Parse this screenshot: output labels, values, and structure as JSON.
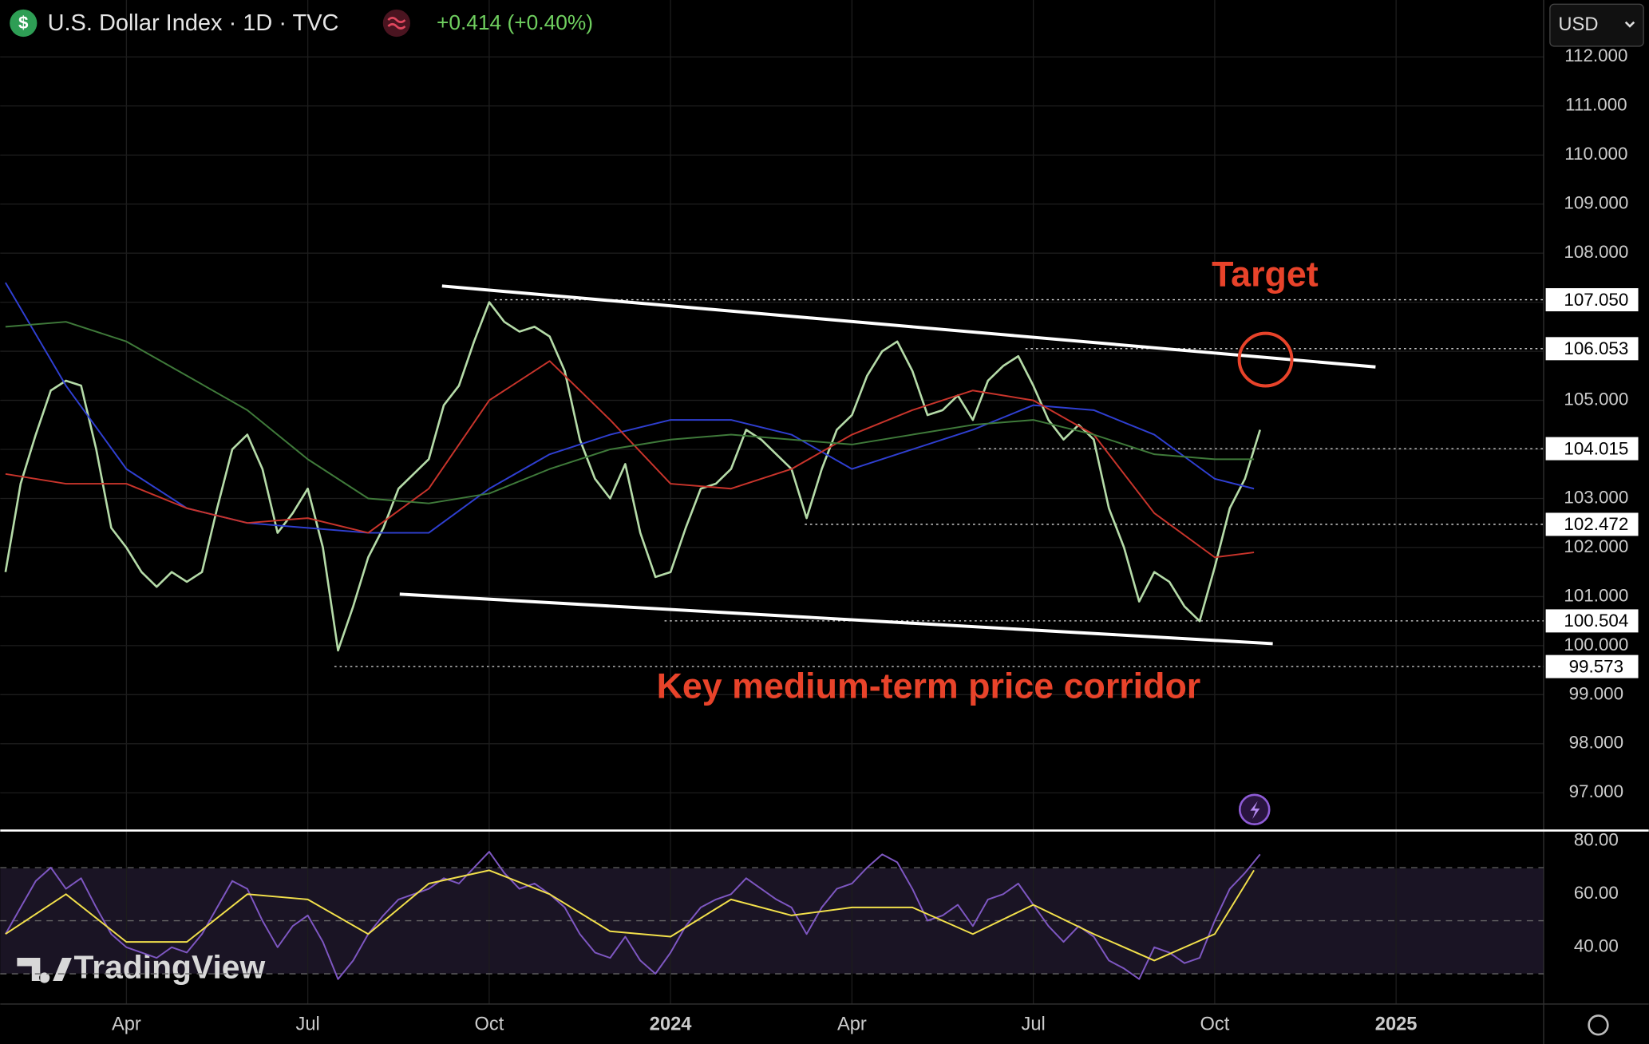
{
  "header": {
    "title": "U.S. Dollar Index · 1D · TVC",
    "change": "+0.414 (+0.40%)",
    "currency": "USD",
    "logo": "TradingView"
  },
  "chart_data": [
    {
      "type": "line",
      "annotations": [
        "Target",
        "Key medium-term price corridor"
      ],
      "xlim": [
        0.913,
        26.44
      ],
      "xticks": [
        {
          "value": 3,
          "label": "Apr"
        },
        {
          "value": 6,
          "label": "Jul"
        },
        {
          "value": 9,
          "label": "Oct"
        },
        {
          "value": 12,
          "label": "2024"
        },
        {
          "value": 15,
          "label": "Apr"
        },
        {
          "value": 18,
          "label": "Jul"
        },
        {
          "value": 21,
          "label": "Oct"
        },
        {
          "value": 24,
          "label": "2025"
        }
      ],
      "ylim": [
        96.23,
        113.16
      ],
      "yticks": [
        {
          "value": 97,
          "label": "97.000"
        },
        {
          "value": 98,
          "label": "98.000"
        },
        {
          "value": 99,
          "label": "99.000"
        },
        {
          "value": 100,
          "label": "100.000"
        },
        {
          "value": 101,
          "label": "101.000"
        },
        {
          "value": 102,
          "label": "102.000"
        },
        {
          "value": 103,
          "label": "103.000"
        },
        {
          "value": 104,
          "label": "104.000"
        },
        {
          "value": 105,
          "label": "105.000"
        },
        {
          "value": 106,
          "label": "106.000"
        },
        {
          "value": 107,
          "label": "107.000"
        },
        {
          "value": 108,
          "label": "108.000"
        },
        {
          "value": 109,
          "label": "109.000"
        },
        {
          "value": 110,
          "label": "110.000"
        },
        {
          "value": 111,
          "label": "111.000"
        },
        {
          "value": 112,
          "label": "112.000"
        }
      ],
      "grid": true,
      "series": [
        {
          "color": "#b5dba8",
          "x": [
            1,
            1.25,
            1.5,
            1.75,
            2,
            2.25,
            2.5,
            2.75,
            3,
            3.25,
            3.5,
            3.75,
            4,
            4.25,
            4.5,
            4.75,
            5,
            5.25,
            5.5,
            5.75,
            6,
            6.25,
            6.5,
            6.75,
            7,
            7.25,
            7.5,
            7.75,
            8,
            8.25,
            8.5,
            8.75,
            9,
            9.25,
            9.5,
            9.75,
            10,
            10.25,
            10.5,
            10.75,
            11,
            11.25,
            11.5,
            11.75,
            12,
            12.25,
            12.5,
            12.75,
            13,
            13.25,
            13.5,
            13.75,
            14,
            14.25,
            14.5,
            14.75,
            15,
            15.25,
            15.5,
            15.75,
            16,
            16.25,
            16.5,
            16.75,
            17,
            17.25,
            17.5,
            17.75,
            18,
            18.25,
            18.5,
            18.75,
            19,
            19.25,
            19.5,
            19.75,
            20,
            20.25,
            20.5,
            20.75,
            21,
            21.25,
            21.5,
            21.75
          ],
          "values": [
            101.5,
            103.3,
            104.3,
            105.2,
            105.4,
            105.3,
            104,
            102.4,
            102,
            101.5,
            101.2,
            101.5,
            101.3,
            101.5,
            102.8,
            104,
            104.3,
            103.6,
            102.3,
            102.7,
            103.2,
            102,
            99.9,
            100.8,
            101.8,
            102.4,
            103.2,
            103.5,
            103.8,
            104.9,
            105.3,
            106.2,
            107,
            106.6,
            106.4,
            106.5,
            106.3,
            105.6,
            104.2,
            103.4,
            103,
            103.7,
            102.3,
            101.4,
            101.5,
            102.4,
            103.2,
            103.3,
            103.6,
            104.4,
            104.2,
            103.9,
            103.6,
            102.6,
            103.6,
            104.4,
            104.7,
            105.5,
            106,
            106.2,
            105.6,
            104.7,
            104.8,
            105.1,
            104.6,
            105.4,
            105.7,
            105.9,
            105.3,
            104.6,
            104.2,
            104.5,
            104.2,
            102.8,
            102,
            100.9,
            101.5,
            101.3,
            100.8,
            100.5,
            101.6,
            102.8,
            103.4,
            104.4
          ]
        },
        {
          "color": "#2f3fd1",
          "x": [
            1,
            2,
            3,
            4,
            5,
            6,
            7,
            8,
            9,
            10,
            11,
            12,
            13,
            14,
            15,
            16,
            17,
            18,
            19,
            20,
            21,
            21.65
          ],
          "values": [
            107.4,
            105.3,
            103.6,
            102.8,
            102.5,
            102.4,
            102.3,
            102.3,
            103.2,
            103.9,
            104.3,
            104.6,
            104.6,
            104.3,
            103.6,
            104,
            104.4,
            104.9,
            104.8,
            104.3,
            103.4,
            103.2
          ]
        },
        {
          "color": "#c8342b",
          "x": [
            1,
            2,
            3,
            4,
            5,
            6,
            7,
            8,
            9,
            10,
            11,
            12,
            13,
            14,
            15,
            16,
            17,
            18,
            19,
            20,
            21,
            21.65
          ],
          "values": [
            103.5,
            103.3,
            103.3,
            102.8,
            102.5,
            102.6,
            102.3,
            103.2,
            105,
            105.8,
            104.6,
            103.3,
            103.2,
            103.6,
            104.3,
            104.8,
            105.2,
            105,
            104.3,
            102.7,
            101.8,
            101.9
          ]
        },
        {
          "color": "#3f7a3a",
          "x": [
            1,
            2,
            3,
            4,
            5,
            6,
            7,
            8,
            9,
            10,
            11,
            12,
            13,
            14,
            15,
            16,
            17,
            18,
            19,
            20,
            21,
            21.65
          ],
          "values": [
            106.5,
            106.6,
            106.2,
            105.5,
            104.8,
            103.8,
            103,
            102.9,
            103.1,
            103.6,
            104,
            104.2,
            104.3,
            104.2,
            104.1,
            104.3,
            104.5,
            104.6,
            104.3,
            103.9,
            103.8,
            103.8
          ]
        }
      ],
      "levels": [
        {
          "value": 107.05,
          "label": "107.050",
          "x0": 9.09
        },
        {
          "value": 106.053,
          "label": "106.053",
          "x0": 17.87
        },
        {
          "value": 104.015,
          "label": "104.015",
          "x0": 17.09
        },
        {
          "value": 102.472,
          "label": "102.472",
          "x0": 14.22
        },
        {
          "value": 100.504,
          "label": "100.504",
          "x0": 11.9
        },
        {
          "value": 99.573,
          "label": "99.573",
          "x0": 6.44
        }
      ],
      "trendlines": [
        {
          "x": [
            8.22,
            23.66
          ],
          "values": [
            107.33,
            105.68
          ]
        },
        {
          "x": [
            7.52,
            21.96
          ],
          "values": [
            101.05,
            100.04
          ]
        }
      ],
      "marker": {
        "x": 21.84,
        "value": 105.83,
        "color": "#e8432a"
      }
    },
    {
      "type": "line",
      "xlim": [
        0.913,
        26.44
      ],
      "ylim": [
        18.6,
        83.96
      ],
      "yticks": [
        {
          "value": 40,
          "label": "40.00"
        },
        {
          "value": 60,
          "label": "60.00"
        },
        {
          "value": 80,
          "label": "80.00"
        }
      ],
      "levels": [
        70,
        50,
        30
      ],
      "series": [
        {
          "color": "#7e57c2",
          "x": [
            1,
            1.25,
            1.5,
            1.75,
            2,
            2.25,
            2.5,
            2.75,
            3,
            3.25,
            3.5,
            3.75,
            4,
            4.25,
            4.5,
            4.75,
            5,
            5.25,
            5.5,
            5.75,
            6,
            6.25,
            6.5,
            6.75,
            7,
            7.25,
            7.5,
            7.75,
            8,
            8.25,
            8.5,
            8.75,
            9,
            9.25,
            9.5,
            9.75,
            10,
            10.25,
            10.5,
            10.75,
            11,
            11.25,
            11.5,
            11.75,
            12,
            12.25,
            12.5,
            12.75,
            13,
            13.25,
            13.5,
            13.75,
            14,
            14.25,
            14.5,
            14.75,
            15,
            15.25,
            15.5,
            15.75,
            16,
            16.25,
            16.5,
            16.75,
            17,
            17.25,
            17.5,
            17.75,
            18,
            18.25,
            18.5,
            18.75,
            19,
            19.25,
            19.5,
            19.75,
            20,
            20.25,
            20.5,
            20.75,
            21,
            21.25,
            21.5,
            21.75
          ],
          "values": [
            45,
            55,
            65,
            70,
            62,
            66,
            55,
            45,
            40,
            38,
            36,
            40,
            38,
            45,
            55,
            65,
            62,
            50,
            40,
            48,
            52,
            42,
            28,
            35,
            45,
            52,
            58,
            60,
            62,
            66,
            64,
            70,
            76,
            68,
            62,
            64,
            60,
            55,
            45,
            38,
            36,
            44,
            35,
            30,
            38,
            48,
            55,
            58,
            60,
            66,
            62,
            58,
            55,
            45,
            55,
            62,
            64,
            70,
            75,
            72,
            62,
            50,
            52,
            56,
            48,
            58,
            60,
            64,
            56,
            48,
            42,
            48,
            44,
            35,
            32,
            28,
            40,
            38,
            34,
            36,
            50,
            62,
            68,
            75
          ]
        },
        {
          "color": "#f2e04b",
          "x": [
            1,
            2,
            3,
            4,
            5,
            6,
            7,
            8,
            9,
            10,
            11,
            12,
            13,
            14,
            15,
            16,
            17,
            18,
            19,
            20,
            21,
            21.65
          ],
          "values": [
            45,
            60,
            42,
            42,
            60,
            58,
            45,
            64,
            69,
            60,
            46,
            44,
            58,
            52,
            55,
            55,
            45,
            56,
            45,
            35,
            45,
            69
          ]
        }
      ]
    }
  ]
}
